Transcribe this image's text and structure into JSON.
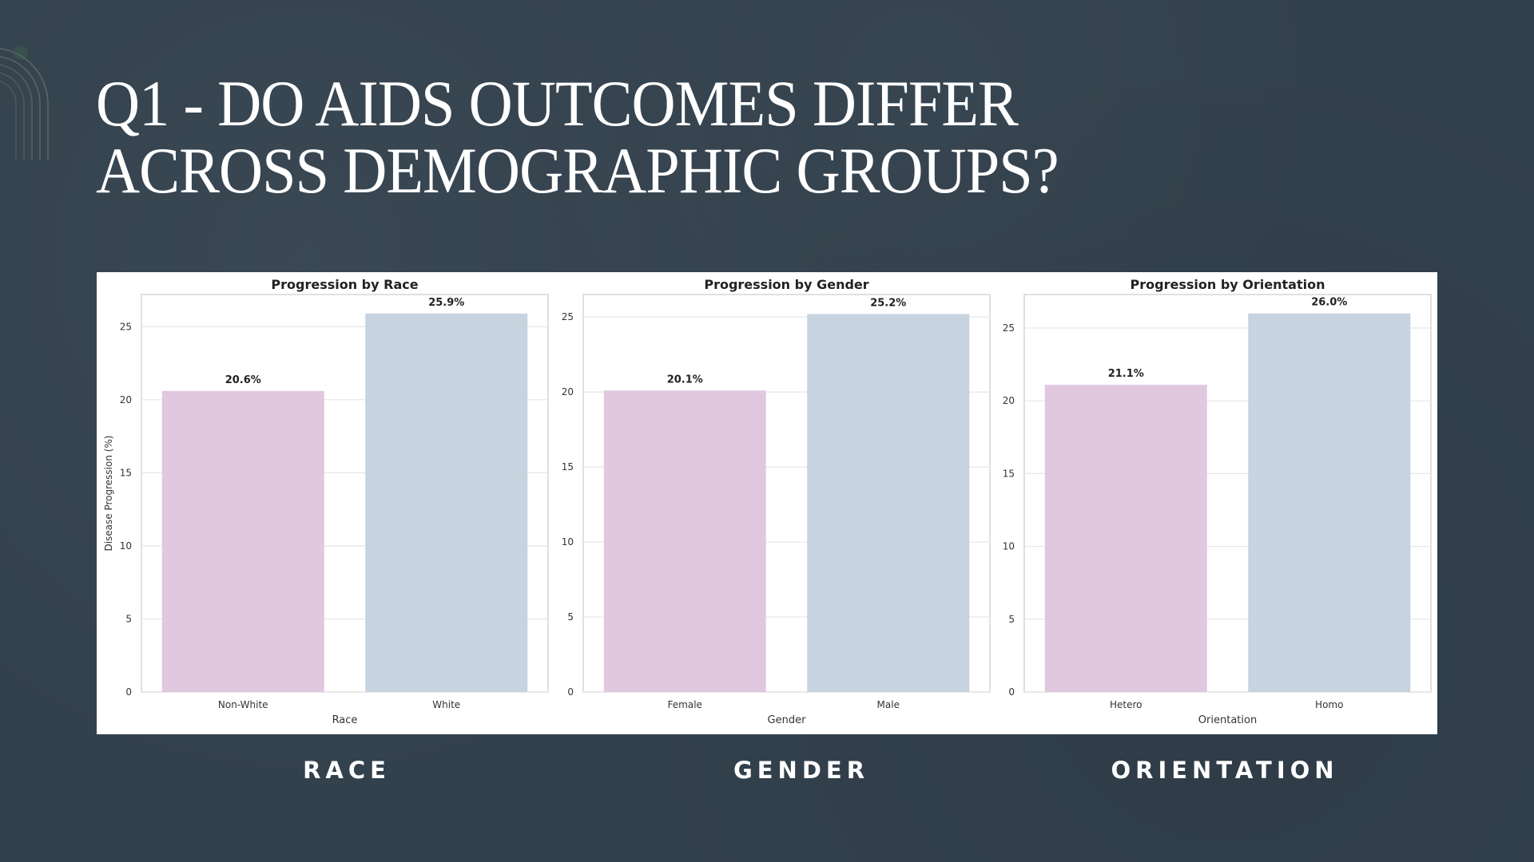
{
  "slide": {
    "title_line1": "Q1 - DO AIDS OUTCOMES DIFFER",
    "title_line2": "ACROSS DEMOGRAPHIC GROUPS?",
    "captions": [
      "RACE",
      "GENDER",
      "ORIENTATION"
    ]
  },
  "colors": {
    "background": "#33414d",
    "bar_first": "#e0c8df",
    "bar_second": "#c8d3e0"
  },
  "chart_data": [
    {
      "type": "bar",
      "title": "Progression by Race",
      "xlabel": "Race",
      "ylabel": "Disease Progression (%)",
      "categories": [
        "Non-White",
        "White"
      ],
      "values": [
        20.6,
        25.9
      ],
      "data_labels": [
        "20.6%",
        "25.9%"
      ],
      "yticks": [
        0,
        5,
        10,
        15,
        20,
        25
      ],
      "ylim": [
        0,
        27.2
      ],
      "grid": true
    },
    {
      "type": "bar",
      "title": "Progression by Gender",
      "xlabel": "Gender",
      "ylabel": "",
      "categories": [
        "Female",
        "Male"
      ],
      "values": [
        20.1,
        25.2
      ],
      "data_labels": [
        "20.1%",
        "25.2%"
      ],
      "yticks": [
        0,
        5,
        10,
        15,
        20,
        25
      ],
      "ylim": [
        0,
        26.5
      ],
      "grid": true
    },
    {
      "type": "bar",
      "title": "Progression by Orientation",
      "xlabel": "Orientation",
      "ylabel": "",
      "categories": [
        "Hetero",
        "Homo"
      ],
      "values": [
        21.1,
        26.0
      ],
      "data_labels": [
        "21.1%",
        "26.0%"
      ],
      "yticks": [
        0,
        5,
        10,
        15,
        20,
        25
      ],
      "ylim": [
        0,
        27.3
      ],
      "grid": true
    }
  ]
}
